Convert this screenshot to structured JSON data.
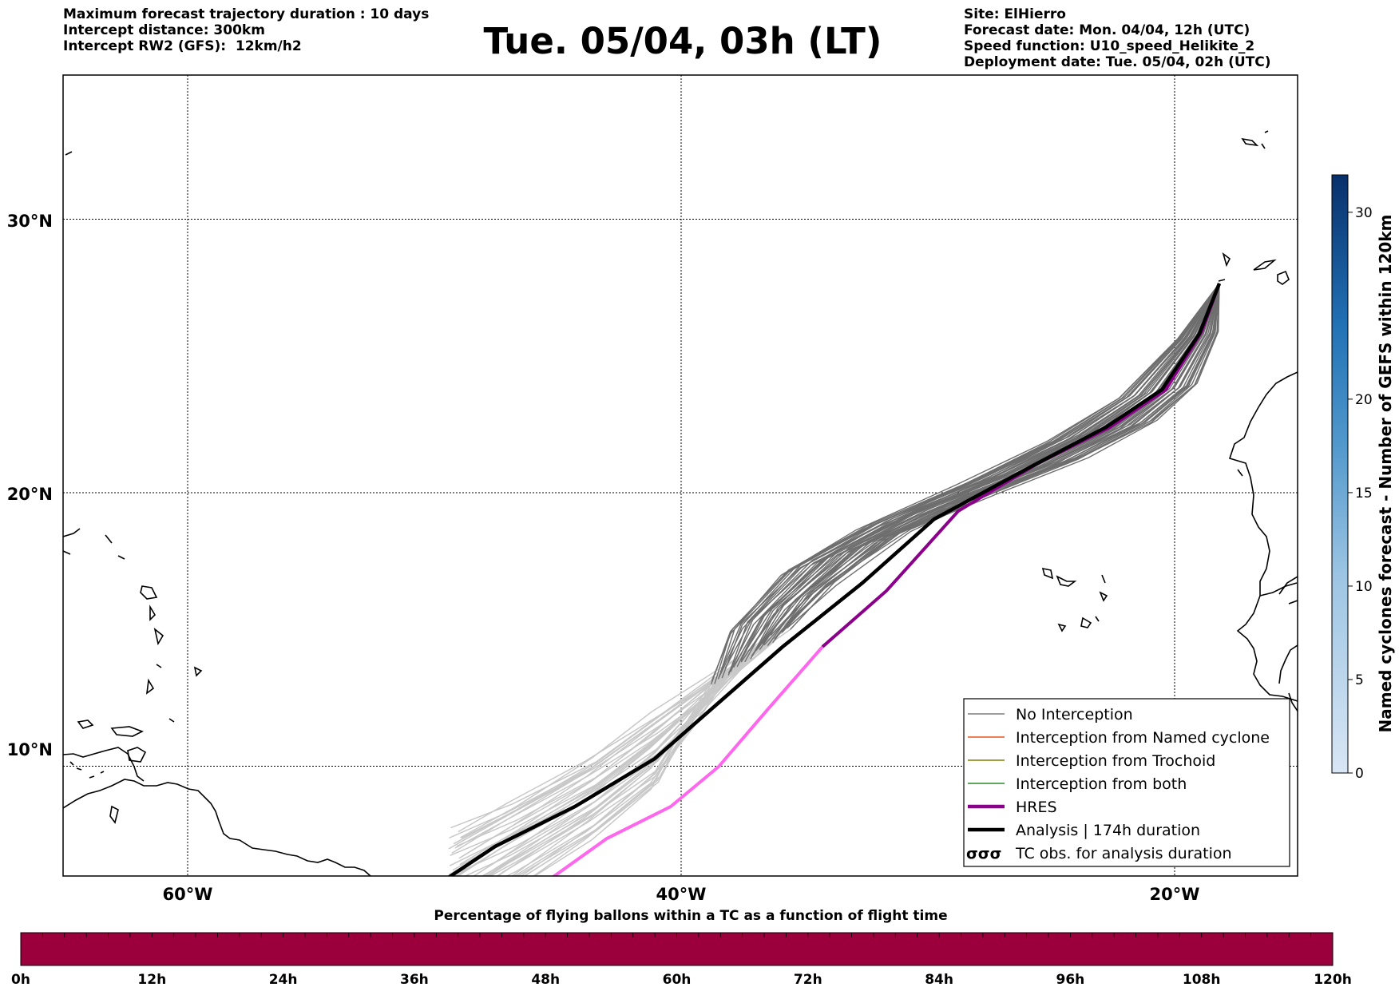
{
  "header": {
    "left_lines": [
      "Maximum forecast trajectory duration : 10 days",
      "Intercept distance: 300km",
      "Intercept RW2 (GFS):  12km/h2"
    ],
    "title": "Tue. 05/04, 03h (LT)",
    "right_lines": [
      "Site: ElHierro",
      "Forecast date: Mon. 04/04, 12h (UTC)",
      "Speed function: U10_speed_Helikite_2",
      "Deployment date: Tue. 05/04, 02h (UTC)"
    ]
  },
  "map": {
    "lon_ticks": [
      "60°W",
      "40°W",
      "20°W"
    ],
    "lat_ticks": [
      "30°N",
      "20°N",
      "10°N"
    ],
    "lon_values": [
      -60,
      -40,
      -20
    ],
    "lat_values": [
      30,
      20,
      10
    ],
    "colors": {
      "ensemble_long": "#6e6e6e",
      "ensemble_short": "#c8c8c8",
      "hres": "#8b008b",
      "hres_late": "#ff66ee",
      "analysis": "#000000"
    }
  },
  "legend": {
    "items": [
      {
        "label": "No Interception",
        "color": "#7f7f7f",
        "style": "thin"
      },
      {
        "label": "Interception from Named cyclone",
        "color": "#e8541f",
        "style": "thin"
      },
      {
        "label": "Interception from Trochoid",
        "color": "#808000",
        "style": "thin"
      },
      {
        "label": "Interception from both",
        "color": "#2a8a2a",
        "style": "thin"
      },
      {
        "label": "HRES",
        "color": "#8b008b",
        "style": "thick"
      },
      {
        "label": "Analysis | 174h duration",
        "color": "#000000",
        "style": "thick"
      },
      {
        "label": "TC obs. for analysis duration",
        "color": "#000000",
        "style": "symbol"
      }
    ]
  },
  "colorbar": {
    "title": "Named cyclones forecast - Number of GEFS within 120km",
    "ticks": [
      "0",
      "5",
      "10",
      "15",
      "20",
      "30"
    ],
    "tick_values": [
      0,
      5,
      10,
      15,
      20,
      30
    ]
  },
  "bottom_bar": {
    "title": "Percentage of flying ballons within a TC as a function of flight time",
    "color": "#9c003c",
    "labels": [
      "0h",
      "12h",
      "24h",
      "36h",
      "48h",
      "60h",
      "72h",
      "84h",
      "96h",
      "108h",
      "120h"
    ]
  }
}
